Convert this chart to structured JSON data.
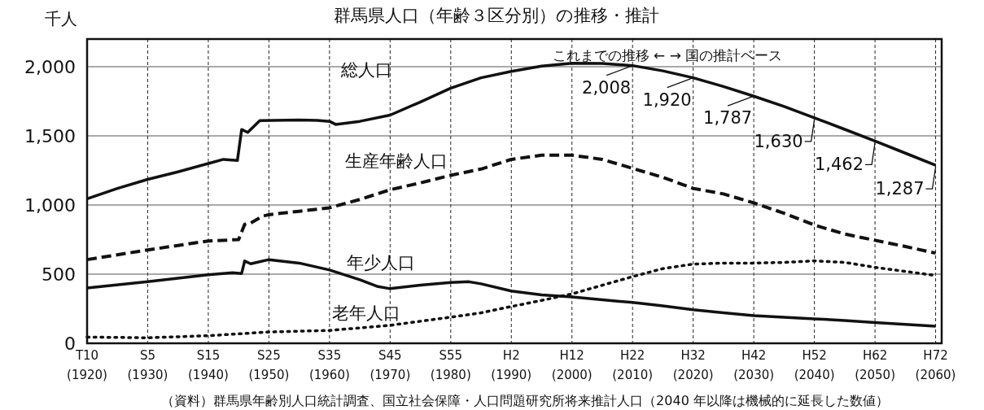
{
  "chart_data": {
    "type": "line",
    "title": "群馬県人口（年齢３区分別）の推移・推計",
    "ylabel": "千人",
    "xlim": [
      1920,
      2061
    ],
    "ylim": [
      0,
      2200
    ],
    "xticks": [
      {
        "value": 1920,
        "label": "(1920)"
      },
      {
        "value": 1930,
        "label": "(1930)"
      },
      {
        "value": 1940,
        "label": "(1940)"
      },
      {
        "value": 1950,
        "label": "(1950)"
      },
      {
        "value": 1960,
        "label": "(1960)"
      },
      {
        "value": 1970,
        "label": "(1970)"
      },
      {
        "value": 1980,
        "label": "(1980)"
      },
      {
        "value": 1990,
        "label": "(1990)"
      },
      {
        "value": 2000,
        "label": "(2000)"
      },
      {
        "value": 2010,
        "label": "(2010)"
      },
      {
        "value": 2020,
        "label": "(2020)"
      },
      {
        "value": 2030,
        "label": "(2030)"
      },
      {
        "value": 2040,
        "label": "(2040)"
      },
      {
        "value": 2050,
        "label": "(2050)"
      },
      {
        "value": 2060,
        "label": "(2060)"
      }
    ],
    "yticks": [
      0,
      {
        "value": 500,
        "label": "500"
      },
      {
        "value": 1000,
        "label": "1,000"
      },
      {
        "value": 1500,
        "label": "1,500"
      },
      {
        "value": 2000,
        "label": "2,000"
      }
    ],
    "grid": true,
    "legend": false,
    "marker": "none",
    "series": [
      {
        "name": "総人口",
        "color": "#111111",
        "line_style": "solid",
        "x": [
          1920,
          1925,
          1930,
          1935,
          1940,
          1942.5,
          1944.8,
          1945.5,
          1946.5,
          1948.5,
          1955,
          1958,
          1960,
          1961,
          1965,
          1970,
          1975,
          1980,
          1985,
          1990,
          1995,
          2000,
          2005,
          2010,
          2015,
          2020,
          2025,
          2030,
          2035,
          2040,
          2045,
          2050,
          2055,
          2060
        ],
        "values": [
          1045,
          1120,
          1185,
          1240,
          1300,
          1330,
          1322,
          1546,
          1525,
          1610,
          1615,
          1612,
          1605,
          1583,
          1605,
          1650,
          1745,
          1845,
          1920,
          1966,
          2004,
          2025,
          2024,
          2008,
          1970,
          1920,
          1857,
          1787,
          1712,
          1630,
          1547,
          1462,
          1375,
          1287
        ]
      },
      {
        "name": "生産年齢人口",
        "color": "#111111",
        "line_style": "dashed",
        "x": [
          1920,
          1930,
          1940,
          1945,
          1946,
          1947,
          1949,
          1950,
          1955,
          1960,
          1965,
          1970,
          1975,
          1980,
          1985,
          1990,
          1995,
          2000,
          2005,
          2010,
          2015,
          2020,
          2025,
          2030,
          2035,
          2040,
          2045,
          2050,
          2055,
          2060
        ],
        "values": [
          605,
          675,
          740,
          750,
          860,
          870,
          920,
          930,
          955,
          980,
          1040,
          1110,
          1160,
          1215,
          1260,
          1330,
          1360,
          1360,
          1330,
          1265,
          1200,
          1120,
          1080,
          1015,
          940,
          855,
          790,
          745,
          700,
          652
        ]
      },
      {
        "name": "年少人口",
        "color": "#111111",
        "line_style": "solid",
        "x": [
          1920,
          1930,
          1940,
          1944,
          1945.5,
          1946,
          1947,
          1950,
          1955,
          1960,
          1965,
          1968,
          1970,
          1975,
          1980,
          1983,
          1985,
          1990,
          1995,
          2000,
          2005,
          2010,
          2015,
          2020,
          2025,
          2030,
          2035,
          2040,
          2045,
          2050,
          2055,
          2060
        ],
        "values": [
          400,
          445,
          495,
          510,
          505,
          595,
          575,
          605,
          580,
          530,
          460,
          410,
          395,
          420,
          440,
          445,
          430,
          378,
          350,
          335,
          315,
          295,
          270,
          242,
          220,
          200,
          188,
          177,
          165,
          150,
          137,
          124
        ]
      },
      {
        "name": "老年人口",
        "color": "#111111",
        "line_style": "dotted",
        "x": [
          1920,
          1930,
          1940,
          1950,
          1960,
          1970,
          1980,
          1985,
          1990,
          1995,
          2000,
          2005,
          2010,
          2015,
          2020,
          2025,
          2030,
          2035,
          2040,
          2045,
          2050,
          2055,
          2060
        ],
        "values": [
          45,
          40,
          55,
          82,
          93,
          130,
          189,
          220,
          266,
          310,
          357,
          420,
          482,
          540,
          573,
          580,
          580,
          585,
          596,
          585,
          549,
          520,
          490
        ]
      }
    ],
    "annotations": [
      {
        "text": "2,008",
        "x": 2010,
        "y": 2008
      },
      {
        "text": "1,920",
        "x": 2020,
        "y": 1920
      },
      {
        "text": "1,787",
        "x": 2030,
        "y": 1787
      },
      {
        "text": "1,630",
        "x": 2040,
        "y": 1630
      },
      {
        "text": "1,462",
        "x": 2050,
        "y": 1462
      },
      {
        "text": "1,287",
        "x": 2060,
        "y": 1287
      },
      "これまでの推移 ← → 国の推計ベース",
      "T10",
      "S5",
      "S15",
      "S25",
      "S35",
      "S45",
      "S55",
      "H2",
      "H12",
      "H22",
      "H32",
      "H42",
      "H52",
      "H62",
      "H72",
      "（資料）群馬県年齢別人口統計調査、国立社会保障・人口問題研究所将来推計人口（2040 年以降は機械的に延長した数値）"
    ]
  }
}
